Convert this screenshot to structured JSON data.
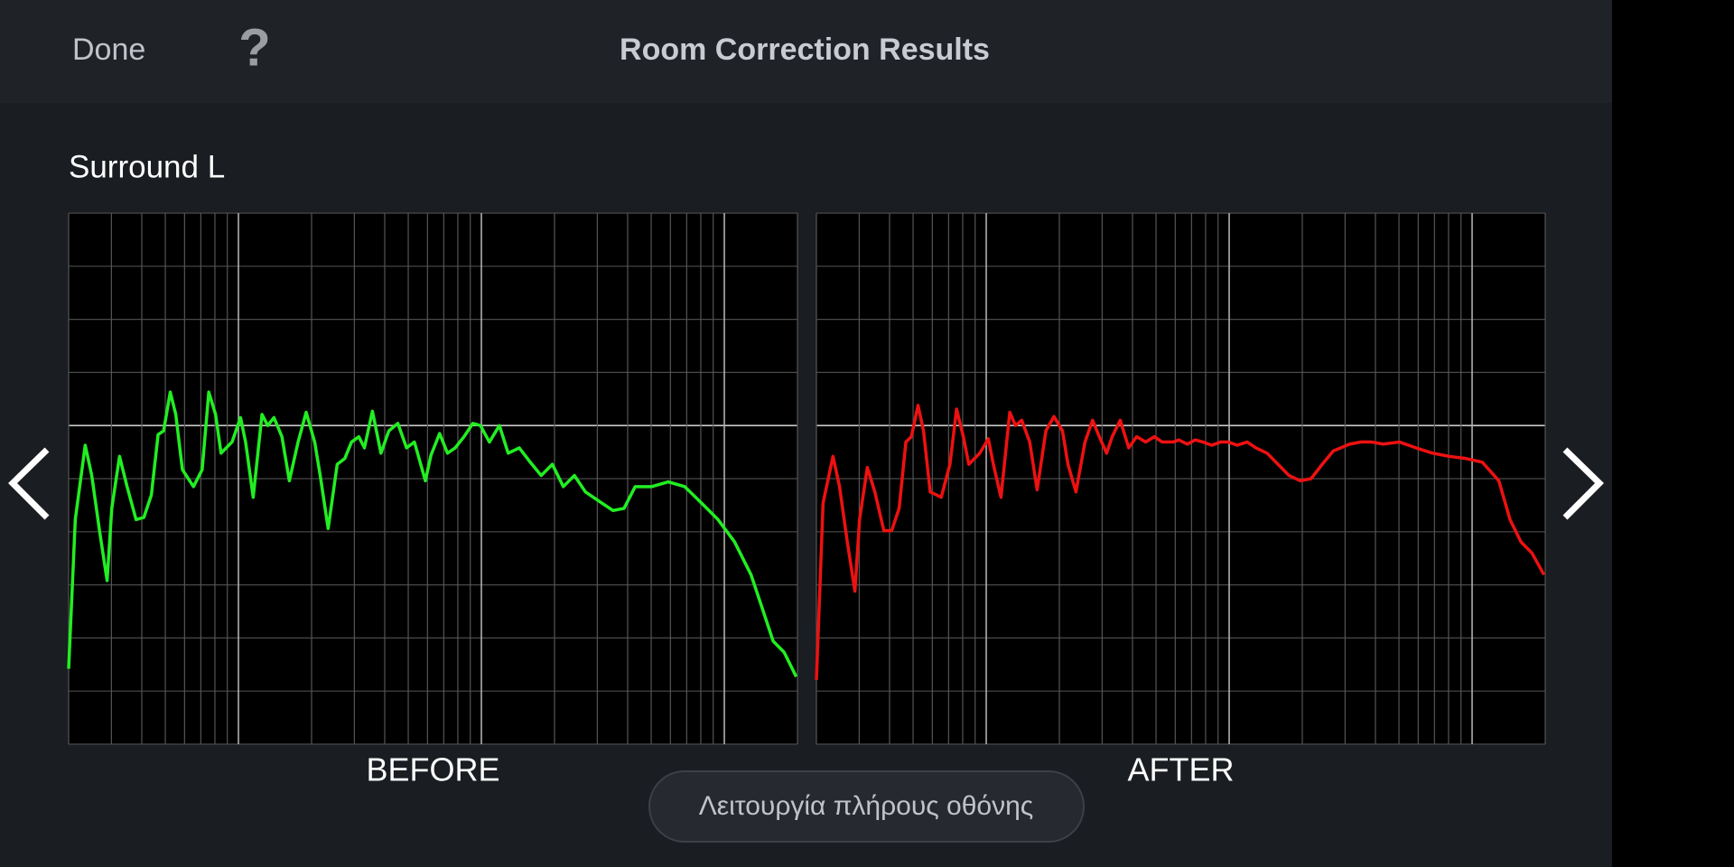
{
  "header": {
    "done": "Done",
    "help": "?",
    "title": "Room Correction Results"
  },
  "channel": "Surround L",
  "fullscreen_button": "Λειτουργία πλήρους οθόνης",
  "chart_data": [
    {
      "type": "line",
      "caption": "BEFORE",
      "xscale": "log",
      "grid": true,
      "reference": 6,
      "xlim": [
        20,
        20000
      ],
      "ylim": [
        0,
        10
      ],
      "xticks": [
        20,
        30,
        40,
        50,
        60,
        70,
        80,
        90,
        100,
        200,
        300,
        400,
        500,
        600,
        700,
        800,
        900,
        1000,
        2000,
        3000,
        4000,
        5000,
        6000,
        7000,
        8000,
        9000,
        10000,
        20000
      ],
      "yticks": [
        0,
        1,
        2,
        3,
        4,
        5,
        6,
        7,
        8,
        9,
        10
      ],
      "x": [
        20,
        21.3,
        23.4,
        24.9,
        26.8,
        28.8,
        30.1,
        32.4,
        34.8,
        37.9,
        40.8,
        43.8,
        46.7,
        49.2,
        52.4,
        55.2,
        58.8,
        65.3,
        70.9,
        75.5,
        80.5,
        84.8,
        94.1,
        102,
        107,
        115,
        125,
        132,
        140,
        151,
        162,
        176,
        190,
        206,
        217,
        234,
        255,
        274,
        292,
        313,
        330,
        356,
        386,
        416,
        453,
        492,
        530,
        588,
        620,
        673,
        725,
        780,
        848,
        922,
        991,
        1079,
        1186,
        1289,
        1432,
        1589,
        1763,
        1959,
        2174,
        2415,
        2681,
        3134,
        3483,
        3864,
        4296,
        5024,
        5875,
        6871,
        8054,
        9418,
        11015,
        12882,
        14324,
        15887,
        17625,
        19770
      ],
      "series": [
        {
          "color": "#22ee22",
          "values": [
            1.42,
            4.23,
            5.63,
            5.06,
            4.02,
            3.08,
            4.44,
            5.42,
            4.85,
            4.23,
            4.27,
            4.69,
            5.83,
            5.9,
            6.63,
            6.21,
            5.17,
            4.85,
            5.17,
            6.63,
            6.21,
            5.48,
            5.69,
            6.15,
            5.69,
            4.65,
            6.21,
            6.0,
            6.15,
            5.79,
            4.96,
            5.69,
            6.25,
            5.69,
            5.06,
            4.06,
            5.27,
            5.38,
            5.69,
            5.79,
            5.58,
            6.27,
            5.48,
            5.9,
            6.04,
            5.58,
            5.69,
            4.96,
            5.44,
            5.85,
            5.48,
            5.58,
            5.79,
            6.04,
            6.0,
            5.69,
            6.0,
            5.48,
            5.58,
            5.31,
            5.06,
            5.27,
            4.85,
            5.06,
            4.75,
            4.54,
            4.4,
            4.44,
            4.85,
            4.85,
            4.94,
            4.85,
            4.54,
            4.23,
            3.81,
            3.19,
            2.56,
            1.94,
            1.73,
            1.27
          ]
        }
      ]
    },
    {
      "type": "line",
      "caption": "AFTER",
      "xscale": "log",
      "grid": true,
      "reference": 6,
      "xlim": [
        20,
        20000
      ],
      "ylim": [
        0,
        10
      ],
      "xticks": [
        20,
        30,
        40,
        50,
        60,
        70,
        80,
        90,
        100,
        200,
        300,
        400,
        500,
        600,
        700,
        800,
        900,
        1000,
        2000,
        3000,
        4000,
        5000,
        6000,
        7000,
        8000,
        9000,
        10000,
        20000
      ],
      "yticks": [
        0,
        1,
        2,
        3,
        4,
        5,
        6,
        7,
        8,
        9,
        10
      ],
      "x": [
        20,
        21.3,
        23.4,
        24.9,
        26.8,
        28.8,
        30.1,
        32.4,
        34.8,
        37.9,
        40.8,
        43.8,
        46.7,
        49.2,
        52.4,
        55.2,
        58.8,
        65.3,
        70.9,
        75.5,
        80.5,
        84.8,
        94.1,
        102,
        107,
        115,
        125,
        132,
        140,
        151,
        162,
        176,
        190,
        206,
        217,
        234,
        255,
        274,
        292,
        313,
        330,
        356,
        386,
        416,
        453,
        492,
        530,
        588,
        620,
        673,
        725,
        780,
        848,
        922,
        991,
        1079,
        1186,
        1289,
        1432,
        1589,
        1763,
        1959,
        2174,
        2415,
        2681,
        3134,
        3483,
        3864,
        4296,
        5024,
        5875,
        6871,
        8054,
        9418,
        11015,
        12882,
        14324,
        15887,
        17625,
        19770
      ],
      "series": [
        {
          "color": "#ee1111",
          "values": [
            1.21,
            4.54,
            5.42,
            4.85,
            3.81,
            2.88,
            4.23,
            5.21,
            4.75,
            4.02,
            4.02,
            4.44,
            5.69,
            5.79,
            6.38,
            5.9,
            4.75,
            4.65,
            5.27,
            6.31,
            5.79,
            5.27,
            5.48,
            5.75,
            5.27,
            4.65,
            6.25,
            6.0,
            6.1,
            5.69,
            4.79,
            5.9,
            6.17,
            5.9,
            5.27,
            4.75,
            5.69,
            6.1,
            5.79,
            5.48,
            5.79,
            6.1,
            5.58,
            5.79,
            5.69,
            5.79,
            5.69,
            5.69,
            5.73,
            5.65,
            5.73,
            5.69,
            5.63,
            5.69,
            5.69,
            5.63,
            5.69,
            5.58,
            5.48,
            5.27,
            5.06,
            4.96,
            5.0,
            5.27,
            5.52,
            5.65,
            5.69,
            5.69,
            5.65,
            5.69,
            5.58,
            5.48,
            5.42,
            5.38,
            5.31,
            4.96,
            4.23,
            3.81,
            3.6,
            3.19
          ]
        }
      ]
    }
  ]
}
